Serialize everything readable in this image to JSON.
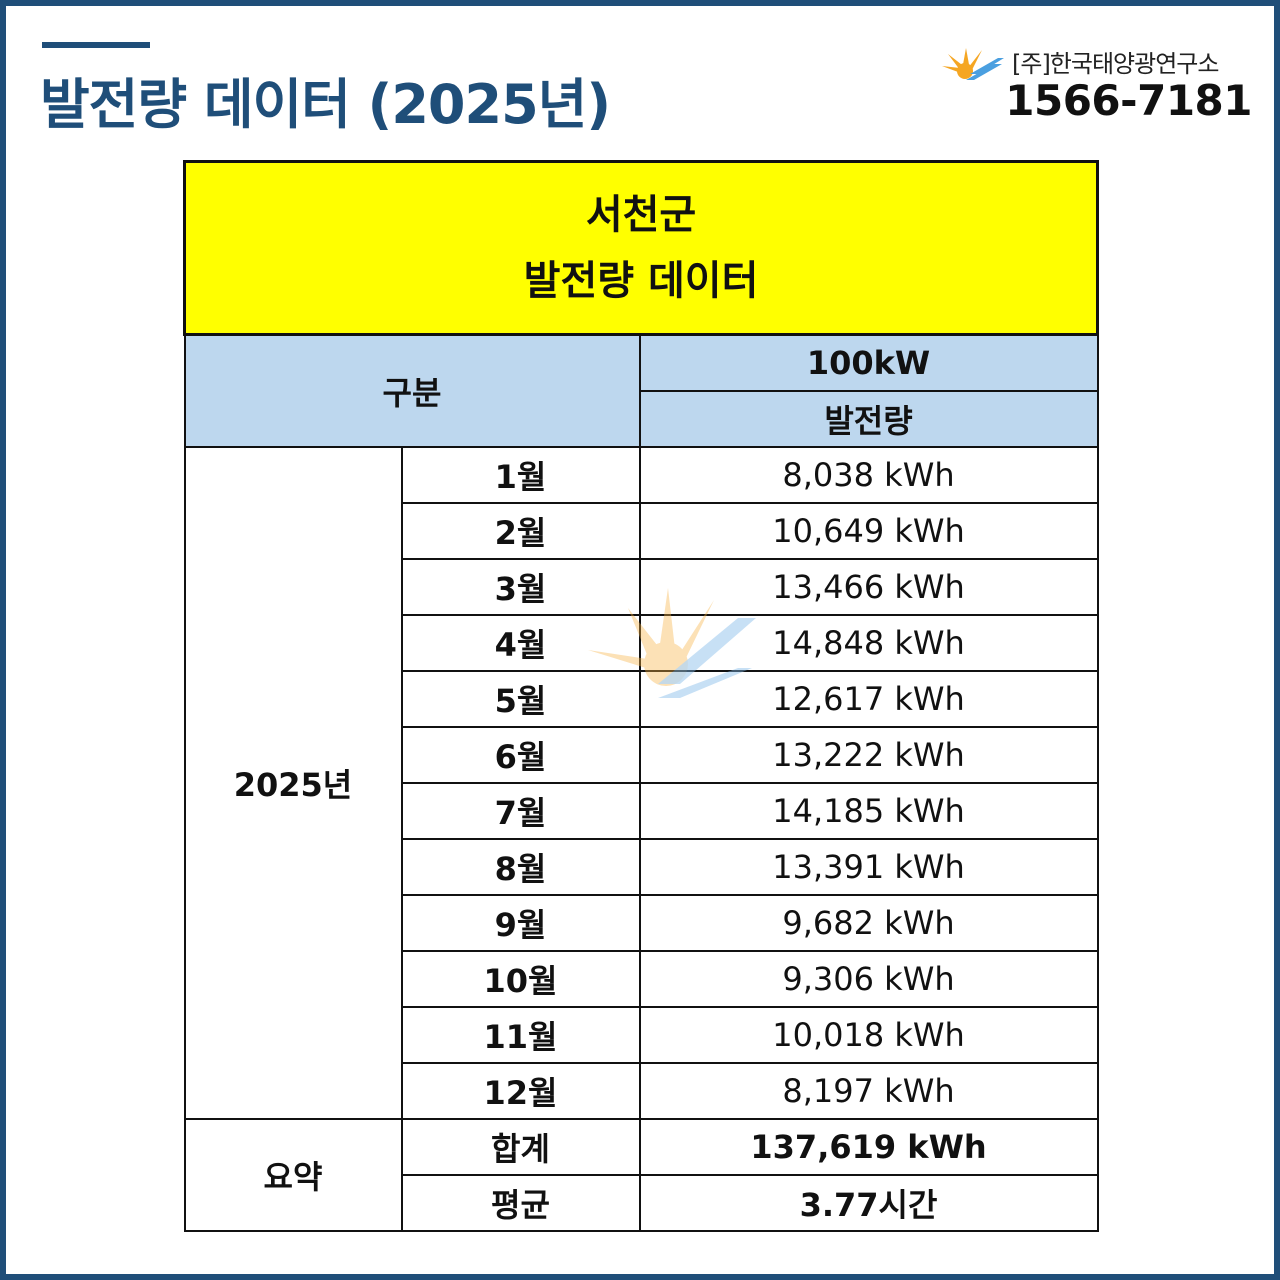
{
  "header": {
    "title": "발전량 데이터 (2025년)",
    "company": "[주]한국태양광연구소",
    "phone": "1566-7181"
  },
  "table": {
    "title_line1": "서천군",
    "title_line2": "발전량 데이터",
    "category_label": "구분",
    "capacity_label": "100kW",
    "generation_label": "발전량",
    "year_label": "2025년",
    "months": [
      {
        "month": "1월",
        "value": "8,038 kWh"
      },
      {
        "month": "2월",
        "value": "10,649 kWh"
      },
      {
        "month": "3월",
        "value": "13,466 kWh"
      },
      {
        "month": "4월",
        "value": "14,848 kWh"
      },
      {
        "month": "5월",
        "value": "12,617 kWh"
      },
      {
        "month": "6월",
        "value": "13,222 kWh"
      },
      {
        "month": "7월",
        "value": "14,185 kWh"
      },
      {
        "month": "8월",
        "value": "13,391 kWh"
      },
      {
        "month": "9월",
        "value": "9,682 kWh"
      },
      {
        "month": "10월",
        "value": "9,306 kWh"
      },
      {
        "month": "11월",
        "value": "10,018 kWh"
      },
      {
        "month": "12월",
        "value": "8,197 kWh"
      }
    ],
    "summary_label": "요약",
    "total_label": "합계",
    "total_value": "137,619 kWh",
    "average_label": "평균",
    "average_value": "3.77시간"
  },
  "colors": {
    "brand": "#1f4e79",
    "title_fill": "#ffff00",
    "header_fill": "#bdd7ee",
    "highlight": "#ff0000"
  },
  "icons": [
    "sun-solar-panel-logo-icon",
    "sun-solar-panel-watermark-icon"
  ]
}
